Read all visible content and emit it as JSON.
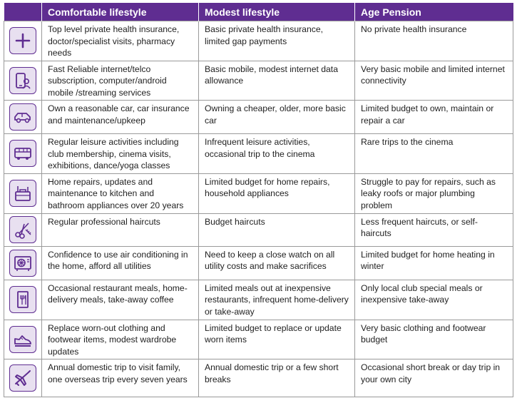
{
  "header": {
    "icon_col": "",
    "comfortable": "Comfortable lifestyle",
    "modest": "Modest lifestyle",
    "pension": "Age Pension"
  },
  "rows": [
    {
      "icon": "medical-cross-icon",
      "comfortable": "Top level private health insurance, doctor/specialist visits, pharmacy needs",
      "modest": "Basic private health insurance, limited gap payments",
      "pension": "No private health insurance"
    },
    {
      "icon": "mobile-phone-icon",
      "comfortable": "Fast Reliable internet/telco subscription, computer/android mobile /streaming services",
      "modest": "Basic mobile, modest internet data allowance",
      "pension": "Very basic mobile and limited internet connectivity"
    },
    {
      "icon": "car-icon",
      "comfortable": "Own a reasonable car, car insurance and maintenance/upkeep",
      "modest": "Owning a cheaper, older, more basic car",
      "pension": "Limited budget to own, maintain or repair a car"
    },
    {
      "icon": "bus-icon",
      "comfortable": "Regular leisure activities including club membership, cinema visits, exhibitions, dance/yoga classes",
      "modest": "Infrequent leisure activities, occasional trip to the cinema",
      "pension": "Rare trips to the cinema"
    },
    {
      "icon": "toolbox-icon",
      "comfortable": "Home repairs, updates and maintenance to kitchen and bathroom appliances over 20 years",
      "modest": "Limited budget for home repairs, household appliances",
      "pension": "Struggle to pay for repairs, such as leaky roofs or major plumbing problem"
    },
    {
      "icon": "scissors-comb-icon",
      "comfortable": "Regular professional haircuts",
      "modest": "Budget haircuts",
      "pension": "Less frequent haircuts, or self-haircuts"
    },
    {
      "icon": "air-conditioner-icon",
      "comfortable": "Confidence to use air conditioning in the home, afford all utilities",
      "modest": "Need to keep a close watch on all utility costs and make sacrifices",
      "pension": "Limited budget for home heating in winter"
    },
    {
      "icon": "restaurant-menu-icon",
      "comfortable": "Occasional restaurant meals, home-delivery meals, take-away coffee",
      "modest": "Limited meals out at inexpensive restaurants, infrequent home-delivery or take-away",
      "pension": "Only local club special meals or inexpensive take-away"
    },
    {
      "icon": "sneaker-icon",
      "comfortable": "Replace worn-out clothing and footwear items, modest wardrobe updates",
      "modest": "Limited budget to replace or update worn items",
      "pension": "Very basic clothing and footwear budget"
    },
    {
      "icon": "airplane-icon",
      "comfortable": "Annual domestic trip to visit family, one overseas trip every seven years",
      "modest": "Annual domestic trip or a few short breaks",
      "pension": "Occasional short break or day trip in your own city"
    }
  ],
  "colors": {
    "header_bg": "#5f2d91",
    "icon_bg": "#e8e0f0",
    "border": "#9a9a9a"
  }
}
